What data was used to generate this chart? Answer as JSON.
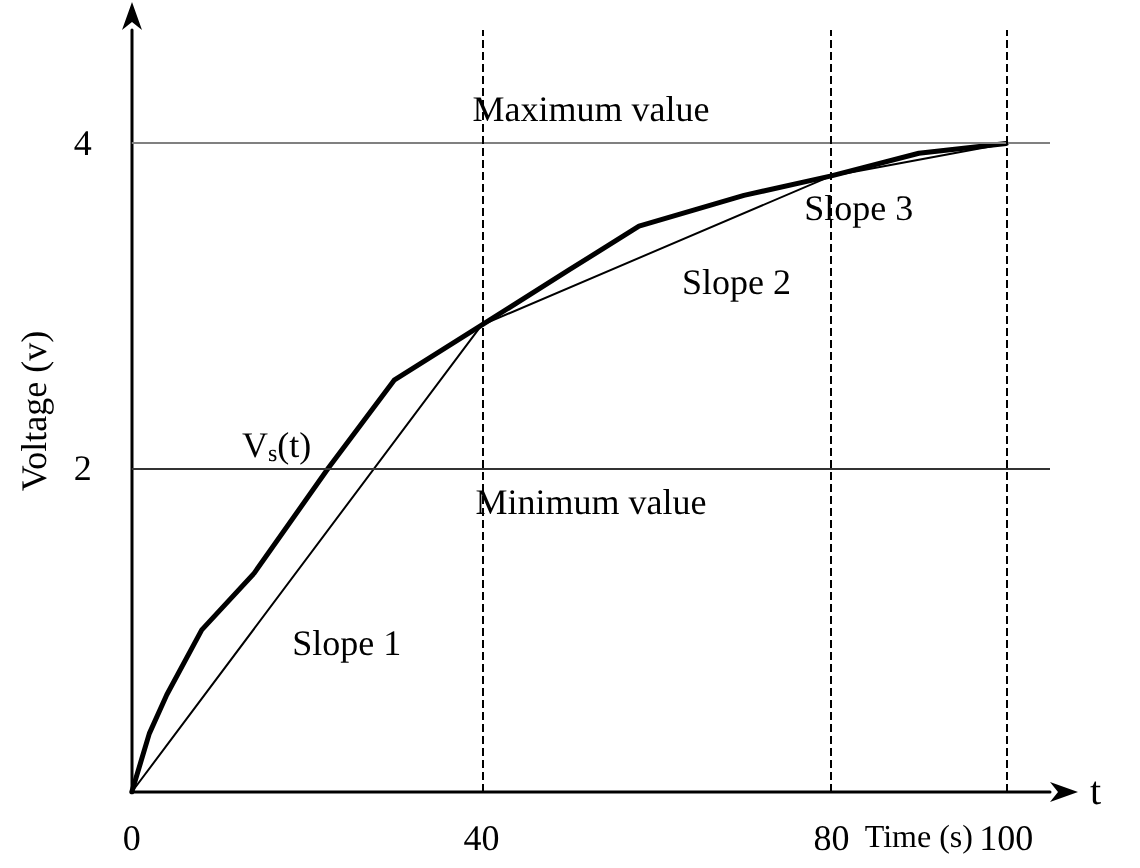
{
  "chart_data": {
    "type": "line",
    "xlabel": "Time (s)",
    "ylabel": "Voltage (v)",
    "xlim": [
      0,
      105
    ],
    "ylim": [
      0,
      4.7
    ],
    "xticks": [
      0,
      40,
      80,
      100
    ],
    "yticks": [
      2,
      4
    ],
    "series": [
      {
        "color": "#000000",
        "x": [
          0,
          2,
          4,
          8,
          14,
          22.5,
          30,
          40,
          50,
          58,
          70,
          80,
          90,
          100
        ],
        "values": [
          0,
          0.36,
          0.6,
          1,
          1.35,
          2,
          2.54,
          2.88,
          3.22,
          3.49,
          3.68,
          3.8,
          3.94,
          4
        ]
      },
      {
        "color": "#000000",
        "x": [
          0,
          40,
          80,
          100
        ],
        "values": [
          0,
          2.88,
          3.8,
          4
        ]
      }
    ],
    "ref_lines": [
      {
        "axis": "y",
        "value": 4,
        "label": "Maximum value",
        "color": "#808080",
        "line_style": "solid"
      },
      {
        "axis": "y",
        "value": 2,
        "label": "Minimum value",
        "color": "#333333",
        "line_style": "solid"
      },
      {
        "axis": "x",
        "value": 40,
        "color": "#000000",
        "line_style": "dashed"
      },
      {
        "axis": "x",
        "value": 80,
        "color": "#000000",
        "line_style": "dashed"
      },
      {
        "axis": "x",
        "value": 100,
        "color": "#000000",
        "line_style": "dashed"
      }
    ],
    "annotations": [
      "V$_{s}$(t)",
      "Slope 1",
      "Slope 2",
      "Slope 3",
      "t"
    ],
    "grid": false,
    "marker": "none",
    "line_style": "solid"
  }
}
